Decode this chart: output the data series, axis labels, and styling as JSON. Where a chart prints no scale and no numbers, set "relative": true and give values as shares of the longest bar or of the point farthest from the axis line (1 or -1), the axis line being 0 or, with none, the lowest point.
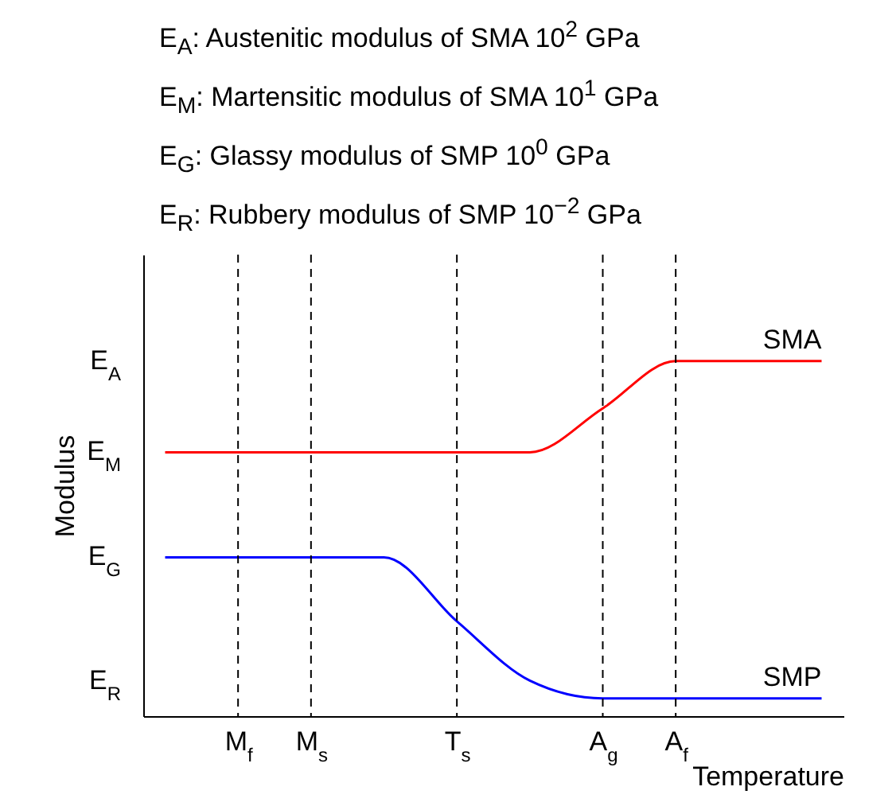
{
  "chart_data": {
    "type": "line",
    "xlabel": "Temperature",
    "ylabel": "Modulus",
    "relative": true,
    "annotations": [
      "E$_{A}$: Austenitic modulus of SMA 10$^{2}$ GPa",
      "E$_{M}$: Martensitic modulus of SMA 10$^{1}$ GPa",
      "E$_{G}$: Glassy modulus of SMP 10$^{0}$ GPa",
      "E$_{R}$: Rubbery modulus of SMP 10$^{−2}$ GPa",
      "E$_{A}$",
      "E$_{M}$",
      "E$_{G}$",
      "E$_{R}$"
    ],
    "categories": [
      null,
      "M$_{f}$",
      "M$_{s}$",
      null,
      "T$_{s}$",
      null,
      "A$_{g}$",
      "A$_{f}$",
      null,
      null
    ],
    "series": [
      {
        "name": "SMA",
        "color": "#ff0000",
        "values": [
          0.743,
          0.743,
          0.743,
          0.743,
          0.743,
          0.743,
          0.867,
          1,
          1,
          1
        ]
      },
      {
        "name": "SMP",
        "color": "#0000ff",
        "values": [
          0.447,
          0.447,
          0.447,
          0.447,
          0.267,
          0.1,
          0.05,
          0.05,
          0.05,
          0.05
        ]
      }
    ],
    "ref_lines": [
      {
        "axis": "x",
        "value": "M$_{f}$",
        "color": "#000000",
        "line_style": "dashed"
      },
      {
        "axis": "x",
        "value": "M$_{s}$",
        "color": "#000000",
        "line_style": "dashed"
      },
      {
        "axis": "x",
        "value": "T$_{s}$",
        "color": "#000000",
        "line_style": "dashed"
      },
      {
        "axis": "x",
        "value": "A$_{g}$",
        "color": "#000000",
        "line_style": "dashed"
      },
      {
        "axis": "x",
        "value": "A$_{f}$",
        "color": "#000000",
        "line_style": "dashed"
      }
    ],
    "marker": "none",
    "line_style": "solid"
  }
}
